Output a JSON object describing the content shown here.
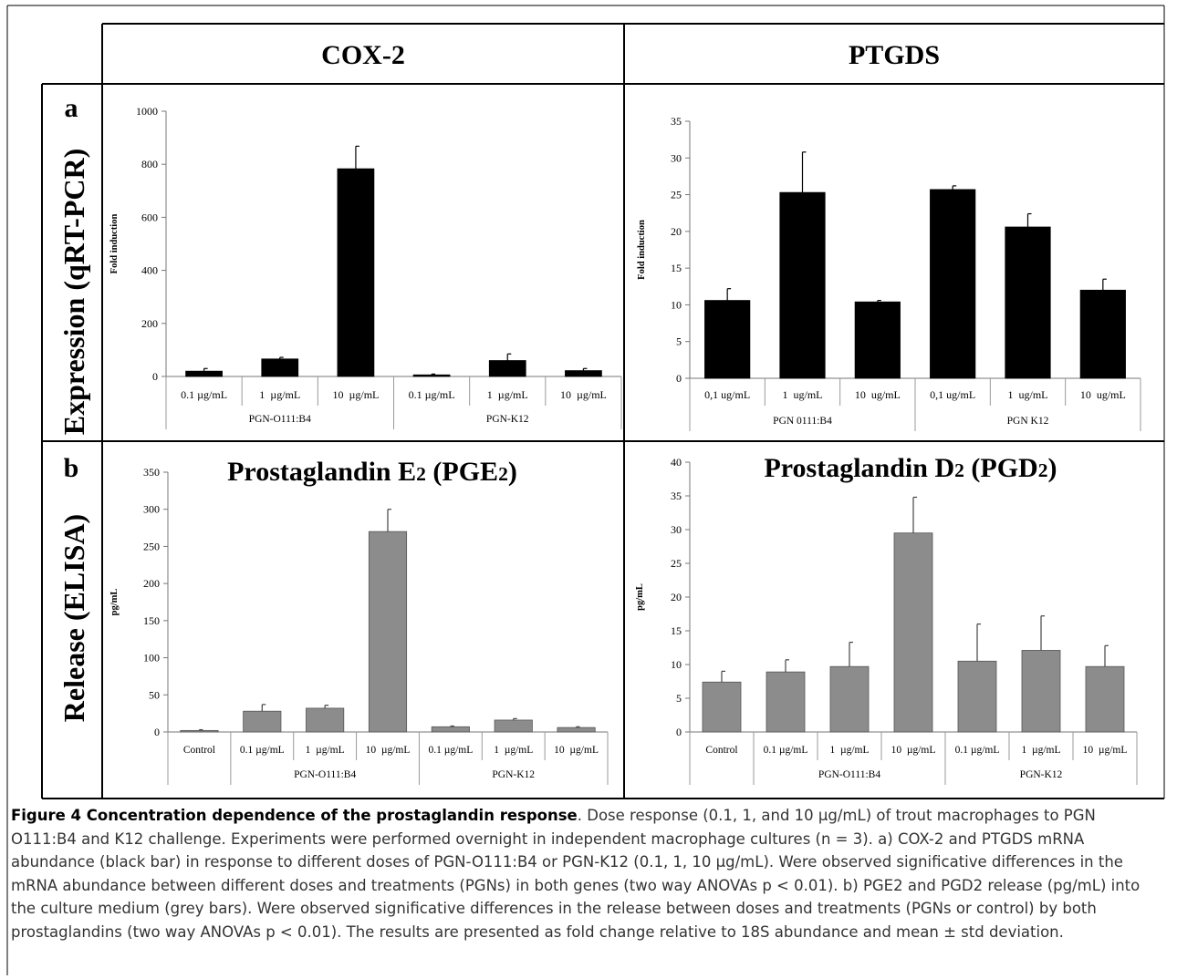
{
  "column_headers": [
    "COX-2",
    "PTGDS"
  ],
  "row_labels": [
    {
      "letter": "a",
      "label": "Expression (qRT-PCR)"
    },
    {
      "letter": "b",
      "label": "Release (ELISA)"
    }
  ],
  "colors": {
    "black_bar": "#000000",
    "grey_bar": "#8c8c8c",
    "border": "#000000",
    "caption_text": "#333333"
  },
  "chart_data": [
    {
      "type": "bar",
      "panel": "a-COX-2",
      "title": "",
      "ylabel": "Fold induction",
      "ylim": [
        0,
        1000
      ],
      "yticks": [
        0,
        200,
        400,
        600,
        800,
        1000
      ],
      "categories": [
        "0.1 µg/mL",
        "1  µg/mL",
        "10  µg/mL",
        "0.1 µg/mL",
        "1  µg/mL",
        "10  µg/mL"
      ],
      "groups": [
        {
          "label": "PGN-O111:B4",
          "span": [
            0,
            2
          ]
        },
        {
          "label": "PGN-K12",
          "span": [
            3,
            5
          ]
        }
      ],
      "values": [
        20,
        66,
        783,
        6,
        60,
        22
      ],
      "errors": [
        10,
        6,
        85,
        3,
        25,
        8
      ],
      "bar_color": "#000000"
    },
    {
      "type": "bar",
      "panel": "a-PTGDS",
      "title": "",
      "ylabel": "Fold induction",
      "ylim": [
        0,
        35
      ],
      "yticks": [
        0,
        5,
        10,
        15,
        20,
        25,
        30,
        35
      ],
      "categories": [
        "0,1 ug/mL",
        "1  ug/mL",
        "10  ug/mL",
        "0,1 ug/mL",
        "1  ug/mL",
        "10  ug/mL"
      ],
      "groups": [
        {
          "label": "PGN 0111:B4",
          "span": [
            0,
            2
          ]
        },
        {
          "label": "PGN K12",
          "span": [
            3,
            5
          ]
        }
      ],
      "values": [
        10.6,
        25.3,
        10.4,
        25.7,
        20.6,
        12.0
      ],
      "errors": [
        1.6,
        5.5,
        0.2,
        0.5,
        1.8,
        1.5
      ],
      "bar_color": "#000000"
    },
    {
      "type": "bar",
      "panel": "b-PGE2",
      "title": "Prostaglandin E2 (PGE2)",
      "ylabel": "pg/mL",
      "ylim": [
        0,
        350
      ],
      "yticks": [
        0,
        50,
        100,
        150,
        200,
        250,
        300,
        350
      ],
      "categories": [
        "Control",
        "0.1 µg/mL",
        "1  µg/mL",
        "10  µg/mL",
        "0.1 µg/mL",
        "1  µg/mL",
        "10  µg/mL"
      ],
      "groups": [
        {
          "label": "PGN-O111:B4",
          "span": [
            1,
            3
          ]
        },
        {
          "label": "PGN-K12",
          "span": [
            4,
            6
          ]
        }
      ],
      "values": [
        2,
        28,
        32,
        270,
        7,
        16,
        6
      ],
      "errors": [
        1,
        9,
        4,
        30,
        1,
        2,
        1
      ],
      "bar_color": "#8c8c8c"
    },
    {
      "type": "bar",
      "panel": "b-PGD2",
      "title": "Prostaglandin D2 (PGD2)",
      "ylabel": "pg/mL",
      "ylim": [
        0,
        40
      ],
      "yticks": [
        0,
        5,
        10,
        15,
        20,
        25,
        30,
        35,
        40
      ],
      "categories": [
        "Control",
        "0.1 µg/mL",
        "1  µg/mL",
        "10  µg/mL",
        "0.1 µg/mL",
        "1  µg/mL",
        "10  µg/mL"
      ],
      "groups": [
        {
          "label": "PGN-O111:B4",
          "span": [
            1,
            3
          ]
        },
        {
          "label": "PGN-K12",
          "span": [
            4,
            6
          ]
        }
      ],
      "values": [
        7.4,
        8.9,
        9.7,
        29.5,
        10.5,
        12.1,
        9.7
      ],
      "errors": [
        1.6,
        1.8,
        3.6,
        5.3,
        5.5,
        5.1,
        3.1
      ],
      "bar_color": "#8c8c8c"
    }
  ],
  "caption": {
    "title": "Figure 4 Concentration dependence of the prostaglandin response",
    "text": ". Dose response (0.1, 1, and 10 µg/mL) of trout macrophages to PGN O111:B4 and K12 challenge. Experiments were performed overnight in independent macrophage cultures (n = 3). a) COX-2 and PTGDS mRNA abundance (black bar) in response to different doses of PGN-O111:B4 or PGN-K12 (0.1, 1, 10 µg/mL). Were observed significative differences in the mRNA abundance between different doses and treatments (PGNs) in both genes (two way ANOVAs p < 0.01). b) PGE2 and PGD2 release (pg/mL) into the culture medium (grey bars). Were observed significative differences in the release between doses and treatments (PGNs or control) by both prostaglandins (two way ANOVAs p < 0.01). The results are presented as fold change relative to 18S abundance and mean ± std deviation."
  }
}
